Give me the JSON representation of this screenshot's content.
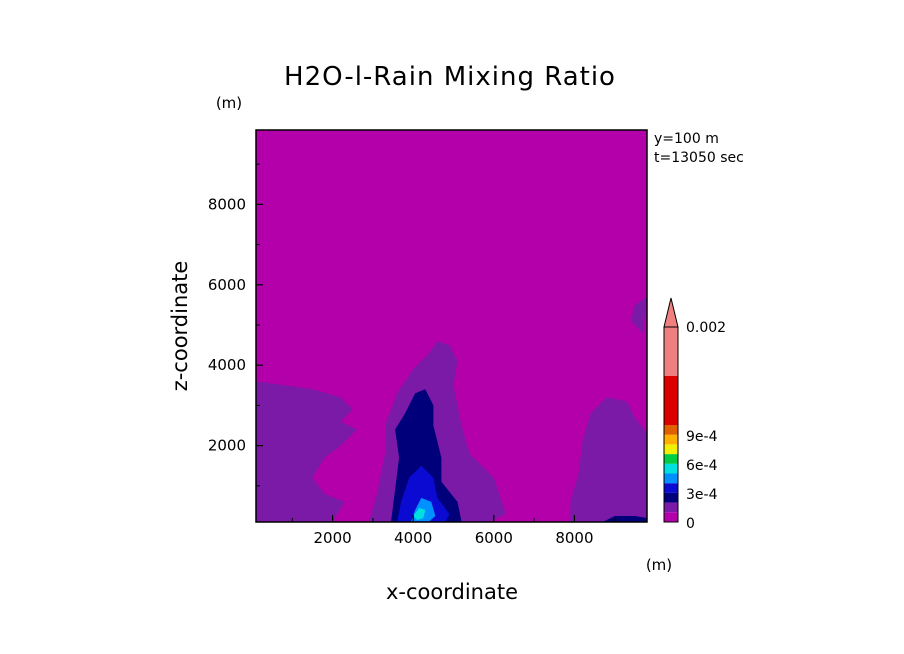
{
  "chart_data": {
    "type": "heatmap",
    "title": "H2O-l-Rain Mixing Ratio",
    "xlabel": "x-coordinate",
    "ylabel": "z-coordinate",
    "x_unit": "(m)",
    "y_unit": "(m)",
    "annotations": [
      "y=100 m",
      "t=13050 sec"
    ],
    "xlim": [
      100,
      9800
    ],
    "ylim": [
      100,
      9850
    ],
    "x_ticks": [
      "2000",
      "4000",
      "6000",
      "8000"
    ],
    "y_ticks": [
      "2000",
      "4000",
      "6000",
      "8000"
    ],
    "colorbar": {
      "labels": [
        "0",
        "3e-4",
        "6e-4",
        "9e-4",
        "0.002"
      ],
      "levels": [
        0,
        0.0001,
        0.0002,
        0.0003,
        0.0004,
        0.0005,
        0.0006,
        0.0007,
        0.0008,
        0.0009,
        0.0015,
        0.002
      ],
      "colors": [
        "#b400aa",
        "#7a1aa6",
        "#00007a",
        "#0a0ad2",
        "#0090ff",
        "#00e0e0",
        "#00cc44",
        "#f0f000",
        "#ffb000",
        "#e06000",
        "#dd0000",
        "#f08080"
      ]
    },
    "regions": [
      {
        "level": 1,
        "points": [
          [
            100,
            3600
          ],
          [
            1500,
            3400
          ],
          [
            2200,
            3200
          ],
          [
            2500,
            2900
          ],
          [
            2200,
            2600
          ],
          [
            2600,
            2400
          ],
          [
            2200,
            2000
          ],
          [
            1800,
            1700
          ],
          [
            1500,
            1200
          ],
          [
            1800,
            800
          ],
          [
            2300,
            600
          ],
          [
            2000,
            100
          ],
          [
            100,
            100
          ]
        ]
      },
      {
        "level": 1,
        "points": [
          [
            2900,
            100
          ],
          [
            3100,
            800
          ],
          [
            3300,
            1800
          ],
          [
            3300,
            2500
          ],
          [
            3600,
            3300
          ],
          [
            4000,
            3900
          ],
          [
            4400,
            4300
          ],
          [
            4600,
            4600
          ],
          [
            4900,
            4500
          ],
          [
            5100,
            4100
          ],
          [
            5000,
            3500
          ],
          [
            5200,
            2500
          ],
          [
            5400,
            1800
          ],
          [
            6000,
            1200
          ],
          [
            6300,
            300
          ],
          [
            5900,
            100
          ]
        ]
      },
      {
        "level": 1,
        "points": [
          [
            7900,
            100
          ],
          [
            7900,
            600
          ],
          [
            8100,
            1300
          ],
          [
            8200,
            2100
          ],
          [
            8400,
            2800
          ],
          [
            8800,
            3200
          ],
          [
            9300,
            3100
          ],
          [
            9500,
            2700
          ],
          [
            9800,
            2300
          ],
          [
            9800,
            100
          ]
        ]
      },
      {
        "level": 1,
        "points": [
          [
            9700,
            4800
          ],
          [
            9400,
            5100
          ],
          [
            9500,
            5500
          ],
          [
            9800,
            5700
          ]
        ]
      },
      {
        "level": 2,
        "points": [
          [
            3450,
            100
          ],
          [
            3550,
            900
          ],
          [
            3650,
            1700
          ],
          [
            3550,
            2400
          ],
          [
            3800,
            2800
          ],
          [
            4050,
            3300
          ],
          [
            4300,
            3400
          ],
          [
            4500,
            3000
          ],
          [
            4500,
            2500
          ],
          [
            4700,
            1700
          ],
          [
            4700,
            1100
          ],
          [
            5100,
            600
          ],
          [
            5200,
            100
          ]
        ]
      },
      {
        "level": 2,
        "points": [
          [
            8700,
            100
          ],
          [
            9000,
            250
          ],
          [
            9500,
            250
          ],
          [
            9800,
            200
          ],
          [
            9800,
            100
          ]
        ]
      },
      {
        "level": 3,
        "points": [
          [
            3600,
            100
          ],
          [
            3700,
            600
          ],
          [
            3900,
            1200
          ],
          [
            4200,
            1500
          ],
          [
            4500,
            1200
          ],
          [
            4600,
            700
          ],
          [
            4900,
            300
          ],
          [
            4800,
            100
          ]
        ]
      },
      {
        "level": 4,
        "points": [
          [
            3950,
            120
          ],
          [
            4050,
            400
          ],
          [
            4200,
            700
          ],
          [
            4450,
            600
          ],
          [
            4550,
            250
          ],
          [
            4400,
            120
          ]
        ]
      },
      {
        "level": 5,
        "points": [
          [
            4000,
            250
          ],
          [
            4150,
            450
          ],
          [
            4300,
            400
          ],
          [
            4250,
            200
          ],
          [
            4100,
            150
          ]
        ]
      }
    ]
  }
}
